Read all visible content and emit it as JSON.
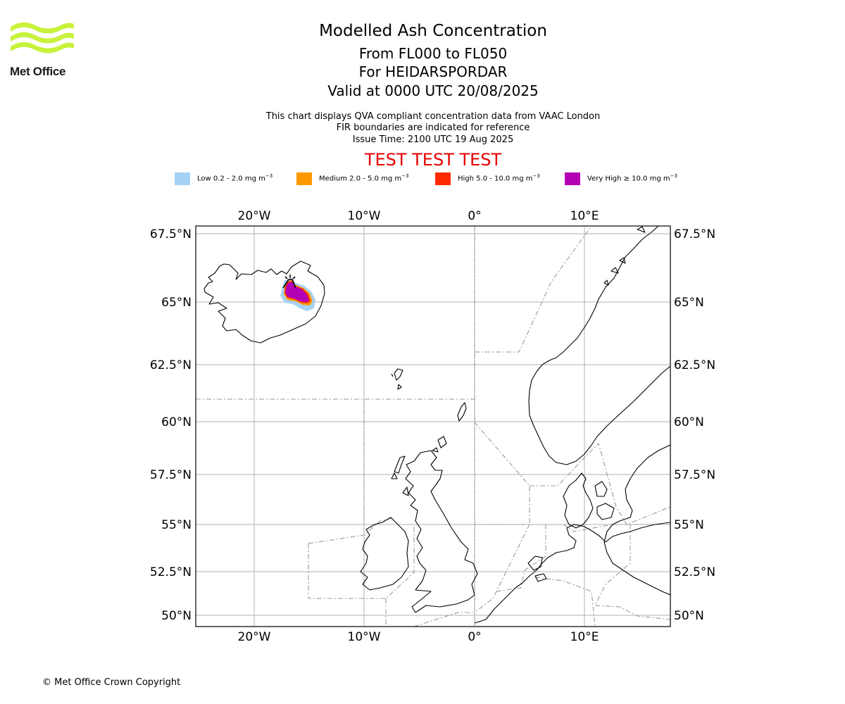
{
  "header": {
    "logo_text": "Met Office",
    "title": "Modelled Ash Concentration",
    "subtitle_levels": "From FL000 to FL050",
    "subtitle_volcano": "For HEIDARSPORDAR",
    "subtitle_valid": "Valid at 0000 UTC 20/08/2025",
    "note_1": "This chart displays QVA compliant concentration data from VAAC London",
    "note_2": "FIR boundaries are indicated for reference",
    "note_3": "Issue Time: 2100 UTC 19 Aug 2025",
    "test_banner": "TEST TEST TEST"
  },
  "legend": {
    "items": [
      {
        "label": "Low 0.2 - 2.0 mg m",
        "exp": "−3",
        "color": "#a6d2f5"
      },
      {
        "label": "Medium 2.0 - 5.0 mg m",
        "exp": "−3",
        "color": "#ff9900"
      },
      {
        "label": "High 5.0 - 10.0 mg m",
        "exp": "−3",
        "color": "#ff2a00"
      },
      {
        "label": "Very High ≥ 10.0 mg m",
        "exp": "−3",
        "color": "#b300b3"
      }
    ]
  },
  "map": {
    "lon_labels": [
      "20°W",
      "10°W",
      "0°",
      "10°E"
    ],
    "lat_labels": [
      "67.5°N",
      "65°N",
      "62.5°N",
      "60°N",
      "57.5°N",
      "55°N",
      "52.5°N",
      "50°N"
    ],
    "ash_levels": [
      "low",
      "medium",
      "high",
      "very-high"
    ],
    "volcano_marker_icon": "volcano-icon"
  },
  "footer": {
    "copyright": "© Met Office Crown Copyright"
  }
}
